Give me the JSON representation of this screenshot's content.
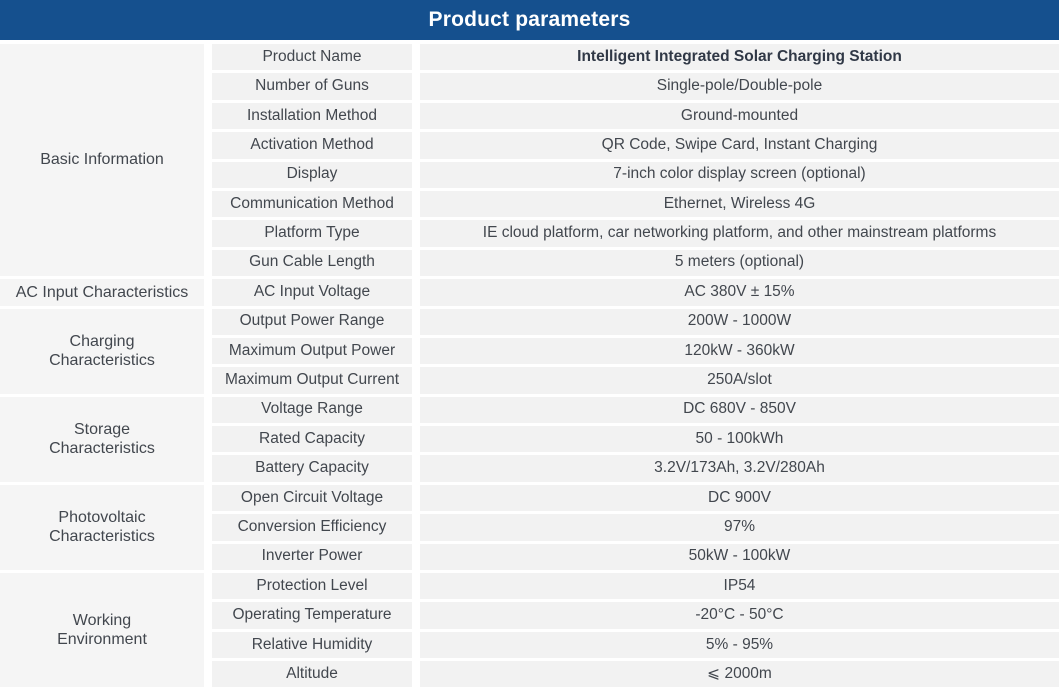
{
  "header": {
    "title": "Product parameters",
    "bar_color": "#15508e",
    "title_color": "#ffffff"
  },
  "table": {
    "columns": [
      "category",
      "parameter",
      "value"
    ],
    "cell_bg_color": "#f2f2f2",
    "text_color": "#42474e",
    "groups": [
      {
        "category": "Basic Information",
        "rows": [
          {
            "param": "Product Name",
            "value": "Intelligent Integrated Solar Charging Station",
            "strong": true
          },
          {
            "param": "Number of Guns",
            "value": "Single-pole/Double-pole"
          },
          {
            "param": "Installation Method",
            "value": "Ground-mounted"
          },
          {
            "param": "Activation Method",
            "value": "QR Code, Swipe Card, Instant Charging"
          },
          {
            "param": "Display",
            "value": "7-inch color display screen (optional)"
          },
          {
            "param": "Communication Method",
            "value": "Ethernet, Wireless 4G"
          },
          {
            "param": "Platform Type",
            "value": "IE cloud platform, car networking platform, and other mainstream platforms"
          },
          {
            "param": "Gun Cable Length",
            "value": "5 meters (optional)"
          }
        ]
      },
      {
        "category": "AC Input Characteristics",
        "rows": [
          {
            "param": "AC Input Voltage",
            "value": "AC 380V ± 15%"
          }
        ]
      },
      {
        "category": "Charging\nCharacteristics",
        "rows": [
          {
            "param": "Output Power Range",
            "value": "200W - 1000W"
          },
          {
            "param": "Maximum Output Power",
            "value": "120kW - 360kW"
          },
          {
            "param": "Maximum Output Current",
            "value": "250A/slot"
          }
        ]
      },
      {
        "category": "Storage\nCharacteristics",
        "rows": [
          {
            "param": "Voltage Range",
            "value": "DC 680V - 850V"
          },
          {
            "param": "Rated Capacity",
            "value": "50 - 100kWh"
          },
          {
            "param": "Battery Capacity",
            "value": "3.2V/173Ah, 3.2V/280Ah"
          }
        ]
      },
      {
        "category": "Photovoltaic\nCharacteristics",
        "rows": [
          {
            "param": "Open Circuit Voltage",
            "value": "DC 900V"
          },
          {
            "param": "Conversion Efficiency",
            "value": "97%"
          },
          {
            "param": "Inverter Power",
            "value": "50kW - 100kW"
          }
        ]
      },
      {
        "category": "Working\nEnvironment",
        "rows": [
          {
            "param": "Protection Level",
            "value": "IP54"
          },
          {
            "param": "Operating Temperature",
            "value": "-20°C - 50°C"
          },
          {
            "param": "Relative Humidity",
            "value": "5% - 95%"
          },
          {
            "param": "Altitude",
            "value": "⩽ 2000m"
          }
        ]
      }
    ]
  }
}
